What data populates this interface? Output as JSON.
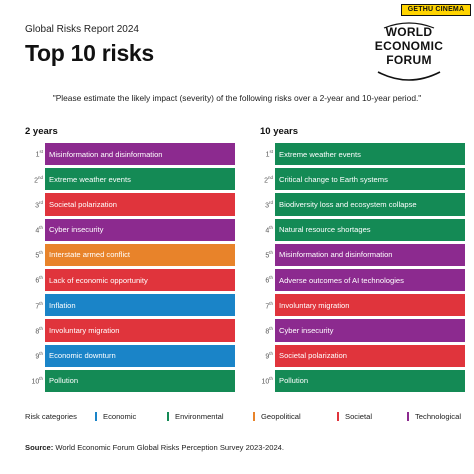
{
  "colors": {
    "economic": "#1a84c8",
    "environmental": "#148a55",
    "geopolitical": "#e8832a",
    "societal": "#e0343c",
    "technological": "#8c2a8f"
  },
  "header": {
    "report_label": "Global Risks Report 2024",
    "title": "Top 10 risks"
  },
  "logo": {
    "line1": "WORLD",
    "line2": "ECONOMIC",
    "line3": "FORUM"
  },
  "badge": "GETHU CINEMA",
  "question": "\"Please estimate the likely impact (severity) of the following risks over a 2-year and 10-year period.\"",
  "columns": [
    {
      "heading": "2 years",
      "items": [
        {
          "rank": "1",
          "suffix": "st",
          "label": "Misinformation and disinformation",
          "category": "technological"
        },
        {
          "rank": "2",
          "suffix": "nd",
          "label": "Extreme weather events",
          "category": "environmental"
        },
        {
          "rank": "3",
          "suffix": "rd",
          "label": "Societal polarization",
          "category": "societal"
        },
        {
          "rank": "4",
          "suffix": "th",
          "label": "Cyber insecurity",
          "category": "technological"
        },
        {
          "rank": "5",
          "suffix": "th",
          "label": "Interstate armed conflict",
          "category": "geopolitical"
        },
        {
          "rank": "6",
          "suffix": "th",
          "label": "Lack of economic opportunity",
          "category": "societal"
        },
        {
          "rank": "7",
          "suffix": "th",
          "label": "Inflation",
          "category": "economic"
        },
        {
          "rank": "8",
          "suffix": "th",
          "label": "Involuntary migration",
          "category": "societal"
        },
        {
          "rank": "9",
          "suffix": "th",
          "label": "Economic downturn",
          "category": "economic"
        },
        {
          "rank": "10",
          "suffix": "th",
          "label": "Pollution",
          "category": "environmental"
        }
      ]
    },
    {
      "heading": "10 years",
      "items": [
        {
          "rank": "1",
          "suffix": "st",
          "label": "Extreme weather events",
          "category": "environmental"
        },
        {
          "rank": "2",
          "suffix": "nd",
          "label": "Critical change to Earth systems",
          "category": "environmental"
        },
        {
          "rank": "3",
          "suffix": "rd",
          "label": "Biodiversity loss and ecosystem collapse",
          "category": "environmental"
        },
        {
          "rank": "4",
          "suffix": "th",
          "label": "Natural resource shortages",
          "category": "environmental"
        },
        {
          "rank": "5",
          "suffix": "th",
          "label": "Misinformation and disinformation",
          "category": "technological"
        },
        {
          "rank": "6",
          "suffix": "th",
          "label": "Adverse outcomes of AI technologies",
          "category": "technological"
        },
        {
          "rank": "7",
          "suffix": "th",
          "label": "Involuntary migration",
          "category": "societal"
        },
        {
          "rank": "8",
          "suffix": "th",
          "label": "Cyber insecurity",
          "category": "technological"
        },
        {
          "rank": "9",
          "suffix": "th",
          "label": "Societal polarization",
          "category": "societal"
        },
        {
          "rank": "10",
          "suffix": "th",
          "label": "Pollution",
          "category": "environmental"
        }
      ]
    }
  ],
  "legend": {
    "title": "Risk categories",
    "items": [
      {
        "label": "Economic",
        "category": "economic"
      },
      {
        "label": "Environmental",
        "category": "environmental"
      },
      {
        "label": "Geopolitical",
        "category": "geopolitical"
      },
      {
        "label": "Societal",
        "category": "societal"
      },
      {
        "label": "Technological",
        "category": "technological"
      }
    ]
  },
  "source": {
    "label": "Source:",
    "text": " World Economic Forum Global Risks Perception Survey 2023-2024."
  }
}
